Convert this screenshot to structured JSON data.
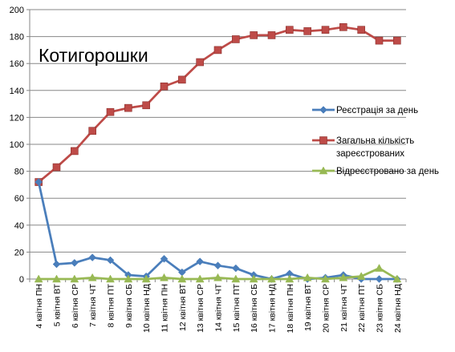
{
  "chart_data": {
    "type": "line",
    "title": "Котигорошки",
    "xlabel": "",
    "ylabel": "",
    "ylim": [
      0,
      200
    ],
    "ytick_step": 20,
    "grid": "horizontal",
    "legend_position": "right",
    "categories": [
      "4 квітня ПН",
      "5 квітня ВТ",
      "6 квітня СР",
      "7 квітня ЧТ",
      "8 квітня ПТ",
      "9 квітня СБ",
      "10 квітня НД",
      "11 квітня ПН",
      "12 квітня ВТ",
      "13 квітня СР",
      "14 квітня ЧТ",
      "15 квітня ПТ",
      "16 квітня СБ",
      "17 квітня НД",
      "18 квітня ПН",
      "19 квітня ВТ",
      "20 квітня СР",
      "21 квітня ЧТ",
      "22 квітня ПТ",
      "23 квітня СБ",
      "24 квітня НД"
    ],
    "series": [
      {
        "name": "Реєстрація за день",
        "legend_lines": [
          "Реєстрація за день"
        ],
        "color": "#4a7ebb",
        "marker": "diamond",
        "values": [
          72,
          11,
          12,
          16,
          14,
          3,
          2,
          15,
          5,
          13,
          10,
          8,
          3,
          0,
          4,
          0,
          1,
          3,
          0,
          0,
          0
        ]
      },
      {
        "name": "Загальна кількість зареєстрованих",
        "legend_lines": [
          "Загальна кількість",
          "зареєстрованих"
        ],
        "color": "#be4b48",
        "marker": "square",
        "values": [
          72,
          83,
          95,
          110,
          124,
          127,
          129,
          143,
          148,
          161,
          170,
          178,
          181,
          181,
          185,
          184,
          185,
          187,
          185,
          177,
          177
        ]
      },
      {
        "name": "Відреєстровано за день",
        "legend_lines": [
          "Відреєстровано за день"
        ],
        "color": "#98b954",
        "marker": "triangle",
        "values": [
          0,
          0,
          0,
          1,
          0,
          0,
          0,
          1,
          0,
          0,
          1,
          0,
          0,
          0,
          0,
          1,
          0,
          1,
          2,
          8,
          0
        ]
      }
    ]
  }
}
